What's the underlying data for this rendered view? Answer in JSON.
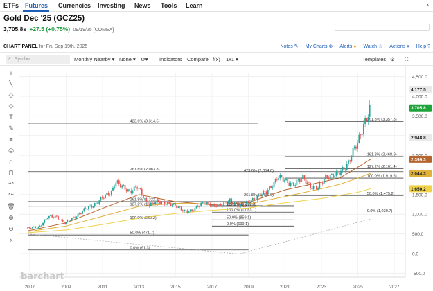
{
  "nav": {
    "tabs": [
      "ETFs",
      "Futures",
      "Currencies",
      "Investing",
      "News",
      "Tools",
      "Learn"
    ],
    "active": "Futures"
  },
  "quote": {
    "title": "Gold Dec '25 (GCZ25)",
    "last": "3,705.8s",
    "change": "+27.5 (+0.75%)",
    "meta": "09/19/25 [COMEX]"
  },
  "panel": {
    "label": "CHART PANEL",
    "date_note": "for Fri, Sep 19th, 2025",
    "links": [
      "Notes",
      "My Charts",
      "Alerts",
      "Watch",
      "Actions",
      "Help"
    ]
  },
  "toolbar": {
    "symbol_placeholder": "Symbol...",
    "interval": "Monthly Nearby",
    "study_none": "None",
    "indicators": "Indicators",
    "compare": "Compare",
    "fx": "f(x)",
    "layout": "1x1",
    "templates": "Templates"
  },
  "icons": [
    "search-icon",
    "crosshair-icon",
    "pencil-icon",
    "text-icon",
    "shape-icon",
    "measure-icon",
    "magnet-icon",
    "lock-icon",
    "eye-icon",
    "undo-icon",
    "redo-icon",
    "trash-icon",
    "zoom-in-icon",
    "zoom-out-icon",
    "collapse-icon",
    "gear-icon",
    "fullscreen-icon"
  ],
  "watermark": "barchart",
  "colors": {
    "up": "#26a69a",
    "down": "#ef5350",
    "ma_short": "#b5652e",
    "ma_mid": "#e0b23b",
    "ma_long": "#f0d24a",
    "fib_line": "#444444",
    "last_price": "#1fa33a",
    "accent": "#1f5eb8"
  },
  "chart_data": {
    "type": "line",
    "title": "Gold Dec '25 (GCZ25)",
    "interval": "Monthly Nearby",
    "x_ticks": [
      "2007",
      "2009",
      "2011",
      "2013",
      "2015",
      "2017",
      "2019",
      "2021",
      "2023",
      "2025",
      "2027"
    ],
    "y_ticks": [
      "4,500.0",
      "4,000.0",
      "3,500.0",
      "3,000.0",
      "2,500.0",
      "2,000.0",
      "1,500.0",
      "1,000.0",
      "500.0",
      "0.0",
      "-500.0"
    ],
    "ylim": [
      -600,
      4600
    ],
    "series": [
      {
        "name": "Close",
        "x": [
          2006.9,
          2007.5,
          2008.0,
          2008.5,
          2008.9,
          2009.5,
          2010.0,
          2010.5,
          2011.0,
          2011.5,
          2011.7,
          2012.0,
          2012.5,
          2012.9,
          2013.3,
          2013.5,
          2014.0,
          2014.5,
          2015.0,
          2015.5,
          2015.9,
          2016.5,
          2017.0,
          2017.5,
          2018.0,
          2018.7,
          2019.0,
          2019.6,
          2020.0,
          2020.6,
          2021.0,
          2021.5,
          2022.0,
          2022.5,
          2022.8,
          2023.3,
          2023.8,
          2024.0,
          2024.5,
          2025.0,
          2025.3,
          2025.7
        ],
        "values": [
          640,
          680,
          920,
          950,
          760,
          950,
          1100,
          1250,
          1400,
          1600,
          1840,
          1700,
          1600,
          1680,
          1400,
          1250,
          1300,
          1300,
          1200,
          1100,
          1060,
          1330,
          1200,
          1260,
          1330,
          1200,
          1300,
          1500,
          1550,
          1970,
          1830,
          1780,
          1900,
          1700,
          1650,
          2000,
          1980,
          2050,
          2350,
          2800,
          3300,
          3705.8
        ]
      },
      {
        "name": "MA short",
        "x": [
          2006.9,
          2009,
          2011,
          2013,
          2015,
          2017,
          2019,
          2021,
          2023,
          2024,
          2025,
          2025.7
        ],
        "values": [
          580,
          780,
          1150,
          1500,
          1320,
          1240,
          1300,
          1620,
          1820,
          1920,
          2200,
          2399.3
        ]
      },
      {
        "name": "MA mid",
        "x": [
          2006.9,
          2009,
          2011,
          2013,
          2015,
          2017,
          2019,
          2021,
          2023,
          2024,
          2025,
          2025.7
        ],
        "values": [
          560,
          700,
          950,
          1200,
          1280,
          1260,
          1260,
          1450,
          1650,
          1760,
          1920,
          2044.3
        ]
      },
      {
        "name": "MA long",
        "x": [
          2006.9,
          2009,
          2011,
          2013,
          2015,
          2017,
          2019,
          2021,
          2023,
          2024,
          2025,
          2025.7
        ],
        "values": [
          530,
          600,
          740,
          900,
          1020,
          1100,
          1160,
          1290,
          1400,
          1480,
          1560,
          1650.2
        ]
      },
      {
        "name": "Lower trend",
        "x": [
          2006.9,
          2018.5,
          2025.7
        ],
        "values": [
          500,
          -10,
          880
        ]
      }
    ],
    "right_labels": [
      {
        "value": 4177.5,
        "label": "4,177.5"
      },
      {
        "value": 3705.8,
        "label": "3,705.8"
      },
      {
        "value": 2948.8,
        "label": "2,948.8"
      },
      {
        "value": 2399.3,
        "label": "2,399.3"
      },
      {
        "value": 2044.3,
        "label": "2,044.3"
      },
      {
        "value": 1650.2,
        "label": "1,650.2"
      }
    ],
    "fib_lines": [
      {
        "value": 3314.5,
        "label": "423.6% (3,314.5)",
        "x_from": 2006.9,
        "x_to": 2019.5,
        "label_x": 2012.5
      },
      {
        "value": 3357.8,
        "label": "261.8% (3,357.8)",
        "x_from": 2021.0,
        "x_to": 2027.5,
        "label_x": 2025.5
      },
      {
        "value": 2468.9,
        "label": "161.8% (2,468.9)",
        "x_from": 2021.0,
        "x_to": 2027.5,
        "label_x": 2025.5
      },
      {
        "value": 2161.4,
        "label": "127.2% (2,161.4)",
        "x_from": 2021.0,
        "x_to": 2027.5,
        "label_x": 2025.5
      },
      {
        "value": 2083.8,
        "label": "261.8% (2,083.8)",
        "x_from": 2006.9,
        "x_to": 2027.5,
        "label_x": 2012.5
      },
      {
        "value": 2054.6,
        "label": "423.6% (2,054.6)",
        "x_from": 2018.7,
        "x_to": 2021.5,
        "label_x": 2018.75
      },
      {
        "value": 1919.6,
        "label": "100.0% (1,919.6)",
        "x_from": 2021.0,
        "x_to": 2027.5,
        "label_x": 2025.5
      },
      {
        "value": 1475.2,
        "label": "50.0% (1,475.2)",
        "x_from": 2021.0,
        "x_to": 2027.5,
        "label_x": 2025.5
      },
      {
        "value": 1436.9,
        "label": "261.8% (1,436.9)",
        "x_from": 2018.7,
        "x_to": 2021.5,
        "label_x": 2018.75
      },
      {
        "value": 1322.4,
        "label": "161.8% (1,322.4)",
        "x_from": 2006.9,
        "x_to": 2019.0,
        "label_x": 2012.5
      },
      {
        "value": 1216.9,
        "label": "161.8% (1,216.9)",
        "x_from": 2017.0,
        "x_to": 2021.5,
        "label_x": 2017.8
      },
      {
        "value": 1202.0,
        "label": "127.2% (1,202.0)",
        "x_from": 2006.9,
        "x_to": 2019.0,
        "label_x": 2012.5
      },
      {
        "value": 1198.3,
        "label": "127.2% (1,198.3)",
        "x_from": 2017.0,
        "x_to": 2021.5,
        "label_x": 2017.8
      },
      {
        "value": 1053.1,
        "label": "100.0% (1,053.1)",
        "x_from": 2017.0,
        "x_to": 2021.5,
        "label_x": 2017.8
      },
      {
        "value": 1030.7,
        "label": "0.0% (1,030.7)",
        "x_from": 2021.0,
        "x_to": 2027.5,
        "label_x": 2025.5
      },
      {
        "value": 859.1,
        "label": "50.0% (859.1)",
        "x_from": 2017.0,
        "x_to": 2021.5,
        "label_x": 2017.8
      },
      {
        "value": 852.2,
        "label": "100.0% (852.2)",
        "x_from": 2006.9,
        "x_to": 2019.0,
        "label_x": 2012.5
      },
      {
        "value": 699.1,
        "label": "0.0% (699.1)",
        "x_from": 2017.0,
        "x_to": 2021.5,
        "label_x": 2017.8
      },
      {
        "value": 471.7,
        "label": "50.0% (471.7)",
        "x_from": 2006.9,
        "x_to": 2019.0,
        "label_x": 2012.5
      },
      {
        "value": 91.3,
        "label": "0.0% (91.3)",
        "x_from": 2006.9,
        "x_to": 2019.0,
        "label_x": 2012.5
      }
    ],
    "grid": true
  }
}
